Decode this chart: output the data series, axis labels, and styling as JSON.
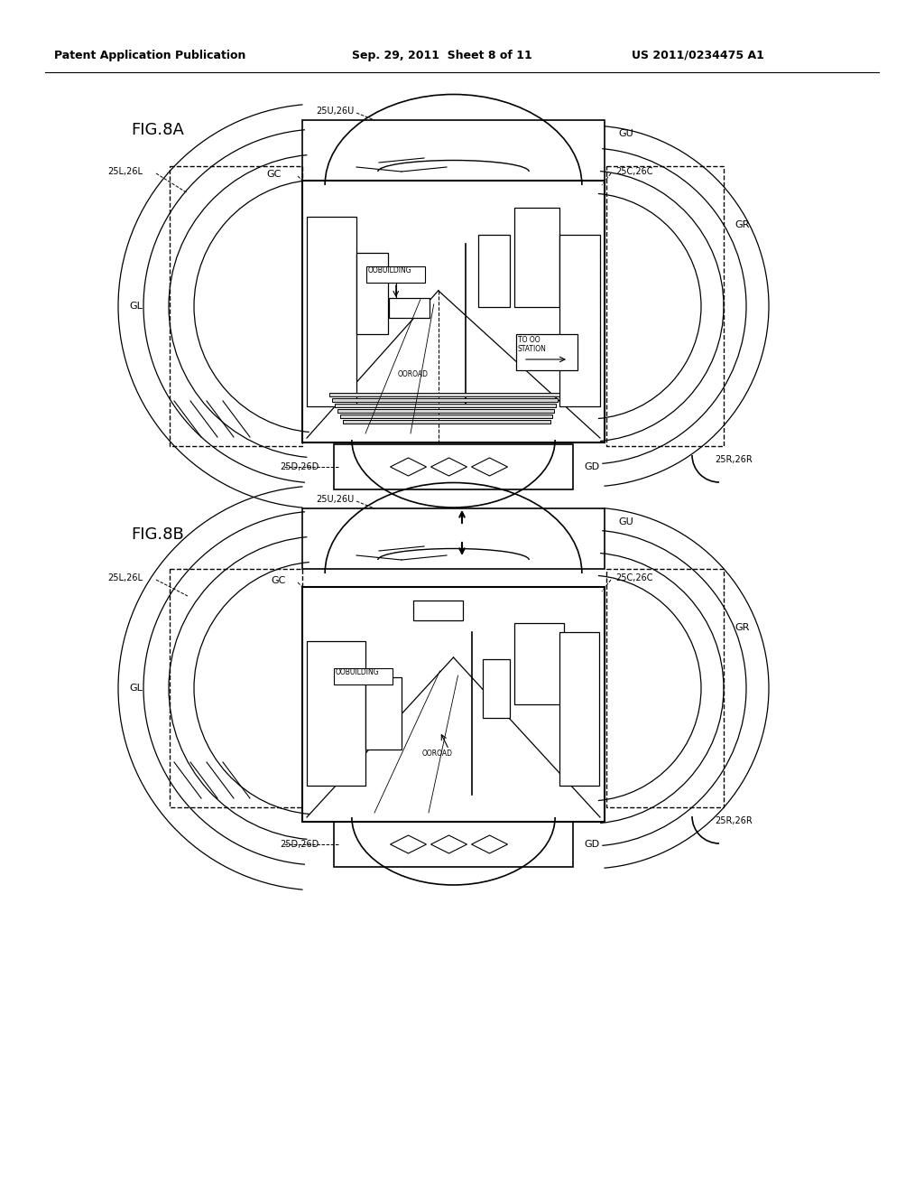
{
  "title_left": "Patent Application Publication",
  "title_mid": "Sep. 29, 2011  Sheet 8 of 11",
  "title_right": "US 2011/0234475 A1",
  "fig8a_label": "FIG.8A",
  "fig8b_label": "FIG.8B",
  "bg_color": "#ffffff",
  "line_color": "#000000",
  "dashed_color": "#555555"
}
